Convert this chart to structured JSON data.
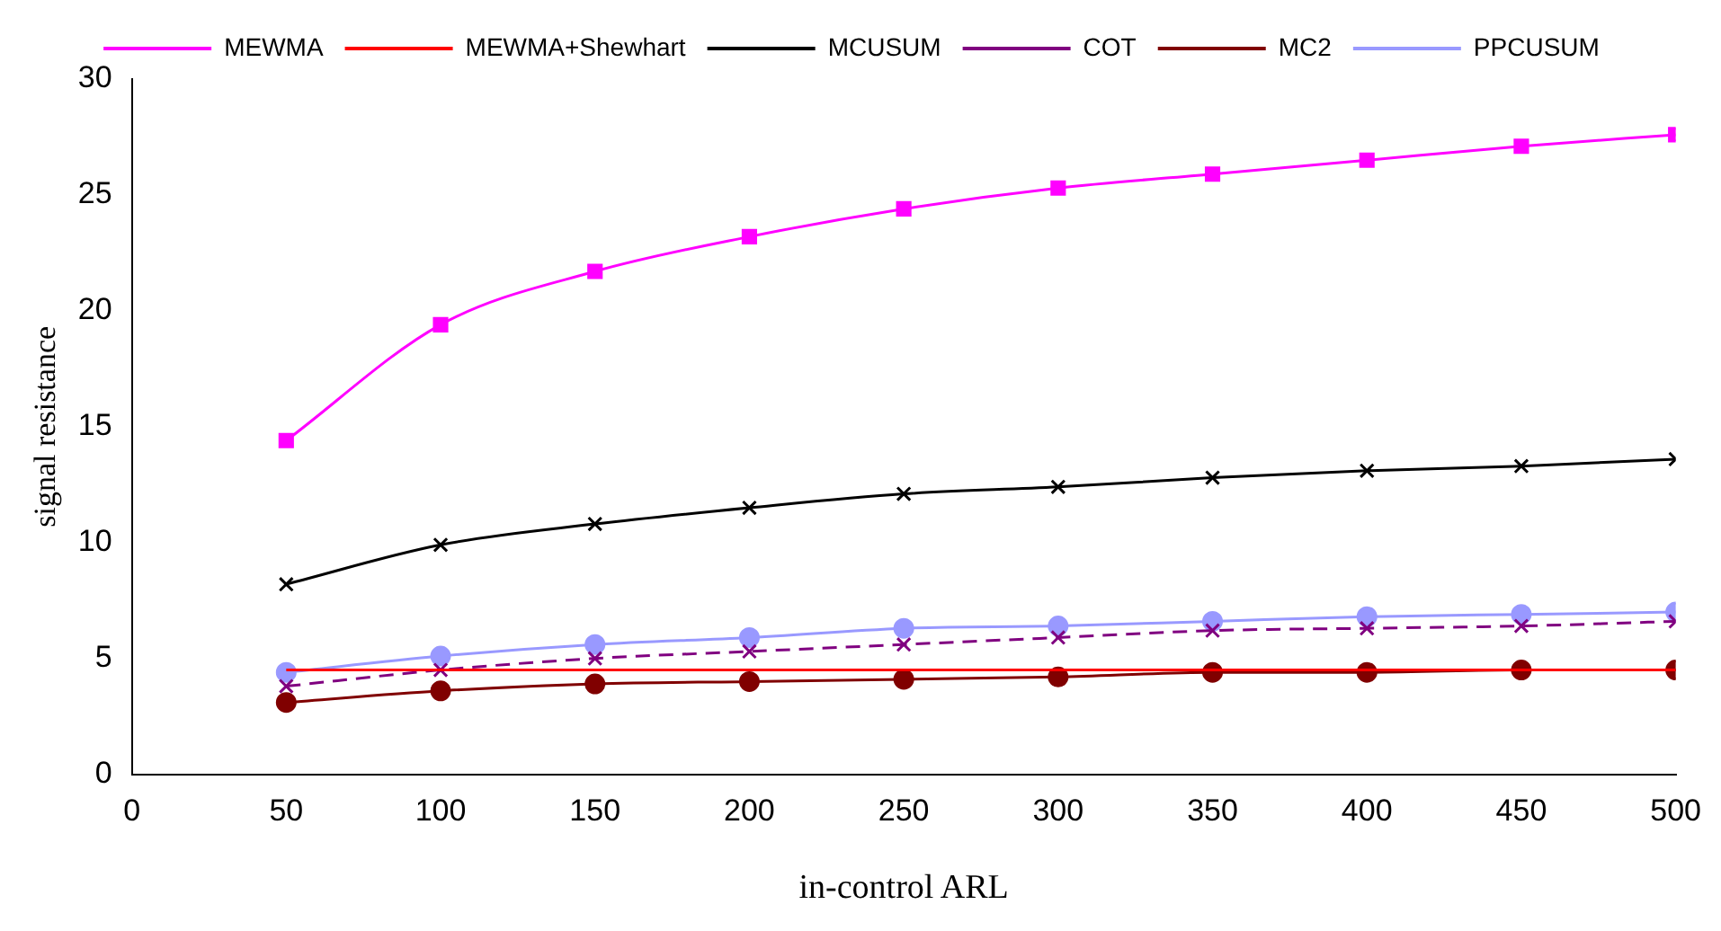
{
  "chart_data": {
    "type": "line",
    "xlabel": "in-control ARL",
    "ylabel": "signal resistance",
    "x": [
      50,
      100,
      150,
      200,
      250,
      300,
      350,
      400,
      450,
      500
    ],
    "xlim": [
      0,
      500
    ],
    "xticks": [
      0,
      50,
      100,
      150,
      200,
      250,
      300,
      350,
      400,
      450,
      500
    ],
    "ylim": [
      0,
      30
    ],
    "yticks": [
      0,
      5,
      10,
      15,
      20,
      25,
      30
    ],
    "grid": false,
    "legend": "top",
    "series": [
      {
        "name": "MEWMA",
        "color": "#ff00ff",
        "marker": "square",
        "line_style": "solid",
        "values": [
          14.4,
          19.4,
          21.7,
          23.2,
          24.4,
          25.3,
          25.9,
          26.5,
          27.1,
          27.6
        ]
      },
      {
        "name": "MEWMA+Shewhart",
        "color": "#ff0000",
        "marker": "none",
        "line_style": "solid",
        "values": [
          4.5,
          4.5,
          4.5,
          4.5,
          4.5,
          4.5,
          4.5,
          4.5,
          4.5,
          4.5
        ]
      },
      {
        "name": "MCUSUM",
        "color": "#000000",
        "marker": "cross",
        "line_style": "solid",
        "values": [
          8.2,
          9.9,
          10.8,
          11.5,
          12.1,
          12.4,
          12.8,
          13.1,
          13.3,
          13.6
        ]
      },
      {
        "name": "COT",
        "color": "#800080",
        "marker": "cross",
        "line_style": "dashed",
        "values": [
          3.8,
          4.5,
          5.0,
          5.3,
          5.6,
          5.9,
          6.2,
          6.3,
          6.4,
          6.6
        ]
      },
      {
        "name": "MC2",
        "color": "#800000",
        "marker": "circle",
        "line_style": "solid",
        "values": [
          3.1,
          3.6,
          3.9,
          4.0,
          4.1,
          4.2,
          4.4,
          4.4,
          4.5,
          4.5
        ]
      },
      {
        "name": "PPCUSUM",
        "color": "#9999ff",
        "marker": "circle",
        "line_style": "solid",
        "values": [
          4.4,
          5.1,
          5.6,
          5.9,
          6.3,
          6.4,
          6.6,
          6.8,
          6.9,
          7.0
        ]
      }
    ]
  }
}
